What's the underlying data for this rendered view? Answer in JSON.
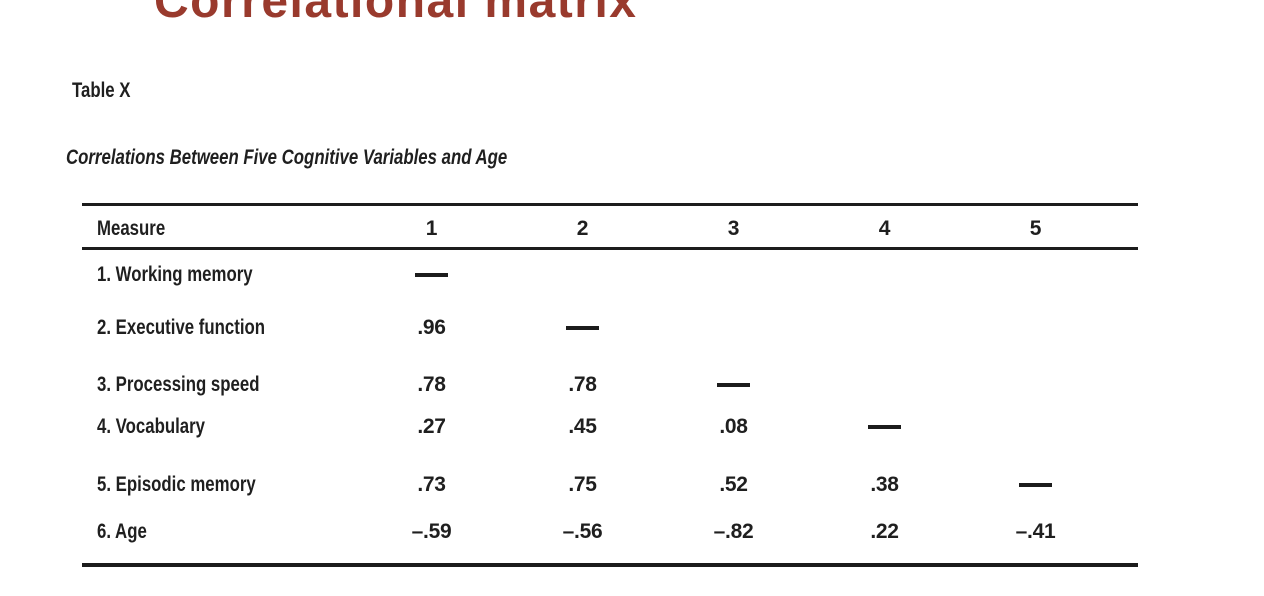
{
  "slide": {
    "title": "Correlational matrix",
    "title_color": "#993A2D"
  },
  "table_block": {
    "label": "Table X",
    "caption": "Correlations Between Five Cognitive Variables and Age",
    "ink_color": "#1F1F1F",
    "header": {
      "measure": "Measure",
      "cols": [
        "1",
        "2",
        "3",
        "4",
        "5"
      ]
    },
    "rows": [
      {
        "label": "1. Working memory",
        "cells": [
          "—",
          "",
          "",
          "",
          ""
        ]
      },
      {
        "label": "2. Executive function",
        "cells": [
          ".96",
          "—",
          "",
          "",
          ""
        ]
      },
      {
        "label": "3. Processing speed",
        "cells": [
          ".78",
          ".78",
          "—",
          "",
          ""
        ]
      },
      {
        "label": "4. Vocabulary",
        "cells": [
          ".27",
          ".45",
          ".08",
          "—",
          ""
        ]
      },
      {
        "label": "5. Episodic memory",
        "cells": [
          ".73",
          ".75",
          ".52",
          ".38",
          "—"
        ]
      },
      {
        "label": "6. Age",
        "cells": [
          "–.59",
          "–.56",
          "–.82",
          ".22",
          "–.41"
        ]
      }
    ]
  }
}
